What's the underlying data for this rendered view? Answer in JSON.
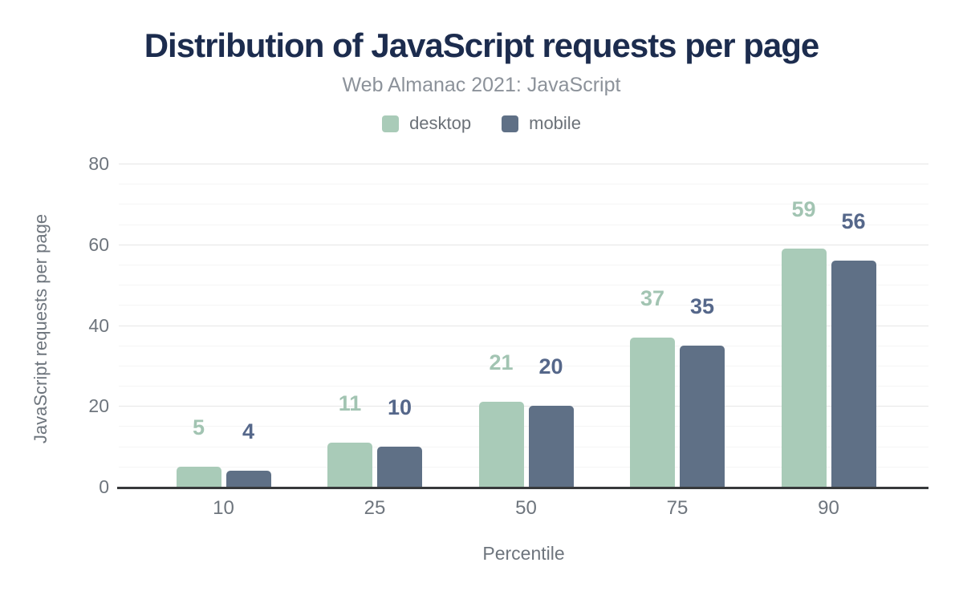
{
  "chart_data": {
    "type": "bar",
    "title": "Distribution of JavaScript requests per page",
    "subtitle": "Web Almanac 2021: JavaScript",
    "xlabel": "Percentile",
    "ylabel": "JavaScript requests per page",
    "categories": [
      "10",
      "25",
      "50",
      "75",
      "90"
    ],
    "series": [
      {
        "name": "desktop",
        "color": "#a9cbb8",
        "label_color": "#a2c4b2",
        "values": [
          5,
          11,
          21,
          37,
          59
        ]
      },
      {
        "name": "mobile",
        "color": "#5f7086",
        "label_color": "#55678a",
        "values": [
          4,
          10,
          20,
          35,
          56
        ]
      }
    ],
    "ylim": [
      0,
      80
    ],
    "yticks": [
      0,
      20,
      40,
      60,
      80
    ],
    "minor_tick_step": 5,
    "grid": true,
    "legend_position": "top"
  },
  "colors": {
    "background": "#ffffff",
    "title": "#1c2c4e",
    "subtitle": "#8c929a",
    "legend_text": "#6b7178",
    "axis_text": "#6e757d",
    "grid_major": "#e6e6e6",
    "grid_minor": "#f5f5f5",
    "axis_line": "#37393b"
  }
}
